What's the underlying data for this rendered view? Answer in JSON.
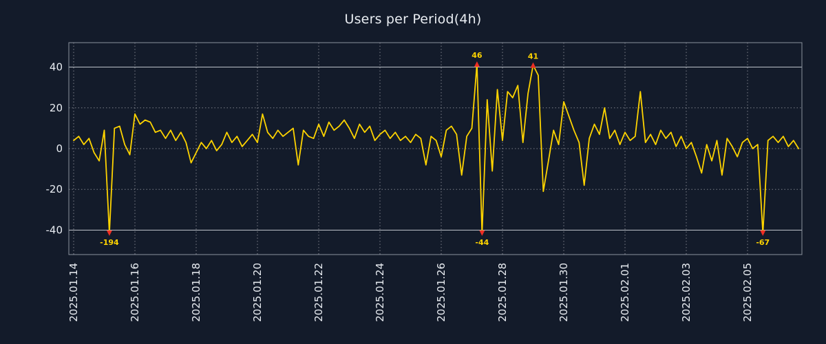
{
  "title": "Users per Period(4h)",
  "colors": {
    "background": "#131b2a",
    "line": "#ffd400",
    "grid": "#ffffff",
    "limit_line": "#d2d6dc",
    "frame": "#8b939d",
    "marker": "#ee2e24",
    "annotation_text": "#ffd400",
    "tick_text": "#e9edf2",
    "title_text": "#e9edf2"
  },
  "chart_data": {
    "type": "line",
    "title": "Users per Period(4h)",
    "x_start": "2025.01.14",
    "x_interval_hours": 4,
    "x_tick_labels": [
      "2025.01.14",
      "2025.01.16",
      "2025.01.18",
      "2025.01.20",
      "2025.01.22",
      "2025.01.24",
      "2025.01.26",
      "2025.01.28",
      "2025.01.30",
      "2025.02.01",
      "2025.02.03",
      "2025.02.05"
    ],
    "y_ticks": [
      40,
      20,
      0,
      -20,
      -40
    ],
    "ylim": [
      -52,
      52
    ],
    "clip": 41.5,
    "grid": true,
    "legend": "none",
    "values": [
      4,
      6,
      2,
      5,
      -2,
      -6,
      9,
      -194,
      10,
      11,
      2,
      -3,
      17,
      12,
      14,
      13,
      8,
      9,
      5,
      9,
      4,
      8,
      3,
      -7,
      -2,
      3,
      0,
      4,
      -1,
      2,
      8,
      3,
      6,
      1,
      4,
      7,
      3,
      17,
      8,
      5,
      9,
      6,
      8,
      10,
      -8,
      9,
      6,
      5,
      12,
      6,
      13,
      9,
      11,
      14,
      10,
      5,
      12,
      8,
      11,
      4,
      7,
      9,
      5,
      8,
      4,
      6,
      3,
      7,
      5,
      -8,
      6,
      4,
      -4,
      9,
      11,
      7,
      -13,
      6,
      10,
      46,
      -44,
      24,
      -11,
      29,
      4,
      28,
      25,
      31,
      3,
      27,
      41,
      36,
      -21,
      -6,
      9,
      2,
      23,
      16,
      9,
      3,
      -18,
      5,
      12,
      7,
      20,
      5,
      9,
      2,
      8,
      4,
      6,
      28,
      3,
      7,
      2,
      9,
      5,
      8,
      1,
      6,
      0,
      3,
      -4,
      -12,
      2,
      -6,
      4,
      -13,
      5,
      1,
      -4,
      3,
      5,
      0,
      2,
      -67,
      4,
      6,
      3,
      6,
      1,
      4,
      0
    ],
    "annotations": [
      {
        "index": 7,
        "label": "-194",
        "position": "bottom"
      },
      {
        "index": 79,
        "label": "46",
        "position": "top"
      },
      {
        "index": 80,
        "label": "-44",
        "position": "bottom"
      },
      {
        "index": 90,
        "label": "41",
        "position": "top"
      },
      {
        "index": 135,
        "label": "-67",
        "position": "bottom"
      }
    ]
  }
}
